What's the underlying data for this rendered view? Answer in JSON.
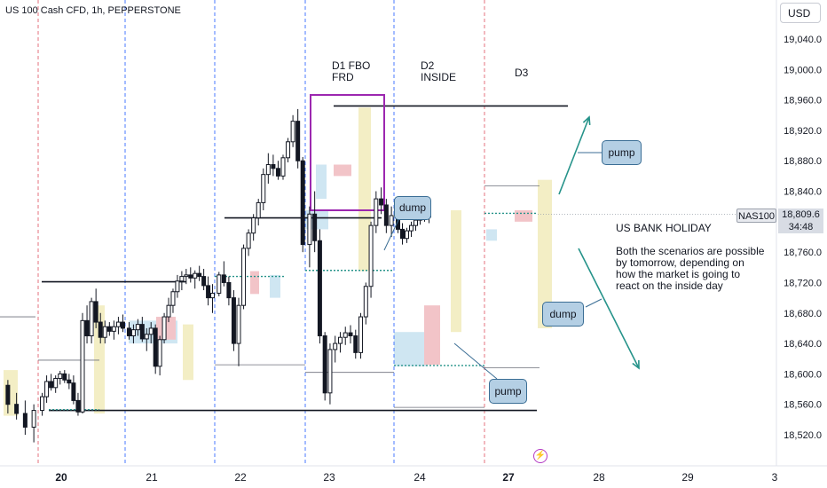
{
  "header": {
    "symbol_label": "US 100 Cash CFD, 1h, PEPPERSTONE",
    "currency_button": "USD"
  },
  "price_axis": {
    "labels": [
      "19,040.0",
      "19,000.0",
      "18,960.0",
      "18,920.0",
      "18,880.0",
      "18,840.0",
      "18,800.0",
      "18,760.0",
      "18,720.0",
      "18,680.0",
      "18,640.0",
      "18,600.0",
      "18,560.0",
      "18,520.0"
    ]
  },
  "price_marker": {
    "symbol_tag": "NAS100",
    "last_price": "18,809.6",
    "countdown": "34:48"
  },
  "time_axis": {
    "labels": [
      "20",
      "21",
      "22",
      "23",
      "24",
      "27",
      "28",
      "29",
      "3"
    ]
  },
  "annotations": {
    "day1": "D1 FBO\nFRD",
    "day2": "D2\nINSIDE",
    "day3": "D3",
    "holiday_title": "US BANK HOLIDAY",
    "holiday_text": "Both the scenarios are possible\nby tomorrow, depending on\nhow the market is going to\nreact on the inside day",
    "callouts": [
      "dump",
      "pump",
      "pump",
      "dump"
    ]
  },
  "colors": {
    "bull": "#131722",
    "bear": "#131722",
    "highlight_yellow": "#f3eec5",
    "highlight_blue": "#cfe6f2",
    "highlight_red": "#f2c4c8",
    "box_purple": "#9c27b0",
    "arrow_teal": "#26938a",
    "day_line_blue": "#2962ff",
    "day_line_red": "#e05a66",
    "level_dotted": "#26938a"
  },
  "chart_data": {
    "type": "candlestick",
    "title": "US 100 Cash CFD, 1h, PEPPERSTONE",
    "ylim": [
      18500,
      19060
    ],
    "y_ticks": [
      19040,
      19000,
      18960,
      18920,
      18880,
      18840,
      18800,
      18760,
      18720,
      18680,
      18640,
      18600,
      18560,
      18520
    ],
    "x_ticks": [
      "20",
      "21",
      "22",
      "23",
      "24",
      "27",
      "28",
      "29",
      "3"
    ],
    "ohlc": [
      [
        18585,
        18592,
        18548,
        18560
      ],
      [
        18560,
        18575,
        18540,
        18548
      ],
      [
        18548,
        18565,
        18520,
        18530
      ],
      [
        18530,
        18560,
        18510,
        18552
      ],
      [
        18552,
        18575,
        18545,
        18570
      ],
      [
        18570,
        18598,
        18562,
        18590
      ],
      [
        18590,
        18600,
        18578,
        18582
      ],
      [
        18582,
        18598,
        18575,
        18594
      ],
      [
        18594,
        18604,
        18586,
        18600
      ],
      [
        18600,
        18605,
        18588,
        18592
      ],
      [
        18592,
        18600,
        18580,
        18588
      ],
      [
        18588,
        18598,
        18560,
        18565
      ],
      [
        18565,
        18575,
        18545,
        18550
      ],
      [
        18550,
        18680,
        18548,
        18670
      ],
      [
        18670,
        18690,
        18640,
        18650
      ],
      [
        18650,
        18700,
        18640,
        18695
      ],
      [
        18695,
        18712,
        18660,
        18668
      ],
      [
        18668,
        18680,
        18640,
        18648
      ],
      [
        18648,
        18670,
        18640,
        18662
      ],
      [
        18662,
        18668,
        18650,
        18656
      ],
      [
        18656,
        18670,
        18645,
        18662
      ],
      [
        18662,
        18675,
        18652,
        18668
      ],
      [
        18668,
        18678,
        18655,
        18660
      ],
      [
        18660,
        18668,
        18645,
        18650
      ],
      [
        18650,
        18665,
        18640,
        18658
      ],
      [
        18658,
        18672,
        18650,
        18665
      ],
      [
        18665,
        18675,
        18642,
        18646
      ],
      [
        18646,
        18660,
        18630,
        18652
      ],
      [
        18652,
        18668,
        18640,
        18660
      ],
      [
        18660,
        18665,
        18600,
        18610
      ],
      [
        18610,
        18650,
        18598,
        18645
      ],
      [
        18645,
        18680,
        18640,
        18675
      ],
      [
        18675,
        18700,
        18668,
        18690
      ],
      [
        18690,
        18712,
        18680,
        18708
      ],
      [
        18708,
        18730,
        18700,
        18722
      ],
      [
        18722,
        18735,
        18710,
        18728
      ],
      [
        18728,
        18738,
        18718,
        18730
      ],
      [
        18730,
        18740,
        18720,
        18726
      ],
      [
        18726,
        18736,
        18712,
        18732
      ],
      [
        18732,
        18742,
        18722,
        18728
      ],
      [
        18728,
        18738,
        18710,
        18716
      ],
      [
        18716,
        18728,
        18690,
        18700
      ],
      [
        18700,
        18718,
        18680,
        18706
      ],
      [
        18706,
        18734,
        18702,
        18730
      ],
      [
        18730,
        18748,
        18715,
        18720
      ],
      [
        18720,
        18728,
        18690,
        18700
      ],
      [
        18700,
        18710,
        18630,
        18640
      ],
      [
        18640,
        18700,
        18610,
        18690
      ],
      [
        18690,
        18770,
        18685,
        18765
      ],
      [
        18765,
        18790,
        18755,
        18785
      ],
      [
        18785,
        18810,
        18775,
        18805
      ],
      [
        18805,
        18830,
        18795,
        18825
      ],
      [
        18825,
        18870,
        18815,
        18862
      ],
      [
        18862,
        18890,
        18850,
        18875
      ],
      [
        18875,
        18888,
        18860,
        18870
      ],
      [
        18870,
        18880,
        18855,
        18860
      ],
      [
        18860,
        18888,
        18855,
        18884
      ],
      [
        18884,
        18910,
        18878,
        18905
      ],
      [
        18905,
        18940,
        18898,
        18932
      ],
      [
        18932,
        18948,
        18870,
        18880
      ],
      [
        18880,
        18885,
        18760,
        18770
      ],
      [
        18770,
        18820,
        18740,
        18810
      ],
      [
        18810,
        18840,
        18760,
        18775
      ],
      [
        18775,
        18790,
        18640,
        18650
      ],
      [
        18650,
        18655,
        18565,
        18575
      ],
      [
        18575,
        18640,
        18560,
        18632
      ],
      [
        18632,
        18650,
        18615,
        18640
      ],
      [
        18640,
        18655,
        18628,
        18648
      ],
      [
        18648,
        18662,
        18638,
        18654
      ],
      [
        18654,
        18664,
        18640,
        18650
      ],
      [
        18650,
        18658,
        18620,
        18628
      ],
      [
        18628,
        18680,
        18620,
        18675
      ],
      [
        18675,
        18720,
        18665,
        18715
      ],
      [
        18715,
        18800,
        18700,
        18795
      ],
      [
        18795,
        18840,
        18785,
        18830
      ],
      [
        18830,
        18845,
        18810,
        18822
      ],
      [
        18822,
        18830,
        18785,
        18795
      ],
      [
        18795,
        18820,
        18780,
        18808
      ],
      [
        18808,
        18812,
        18785,
        18790
      ],
      [
        18790,
        18798,
        18770,
        18778
      ],
      [
        18778,
        18792,
        18772,
        18788
      ],
      [
        18788,
        18800,
        18780,
        18795
      ],
      [
        18795,
        18810,
        18788,
        18802
      ],
      [
        18802,
        18820,
        18796,
        18816
      ],
      [
        18816,
        18822,
        18800,
        18806
      ],
      [
        18806,
        18815,
        18798,
        18810
      ]
    ],
    "lines": {
      "horizontal_levels": [
        18952,
        18805,
        18721,
        18552,
        18670
      ],
      "dotted_levels": [
        18553,
        18736,
        18611
      ]
    },
    "annotations": [
      "D1 FBO FRD",
      "D2 INSIDE",
      "D3",
      "US BANK HOLIDAY",
      "dump",
      "pump",
      "pump",
      "dump"
    ]
  }
}
